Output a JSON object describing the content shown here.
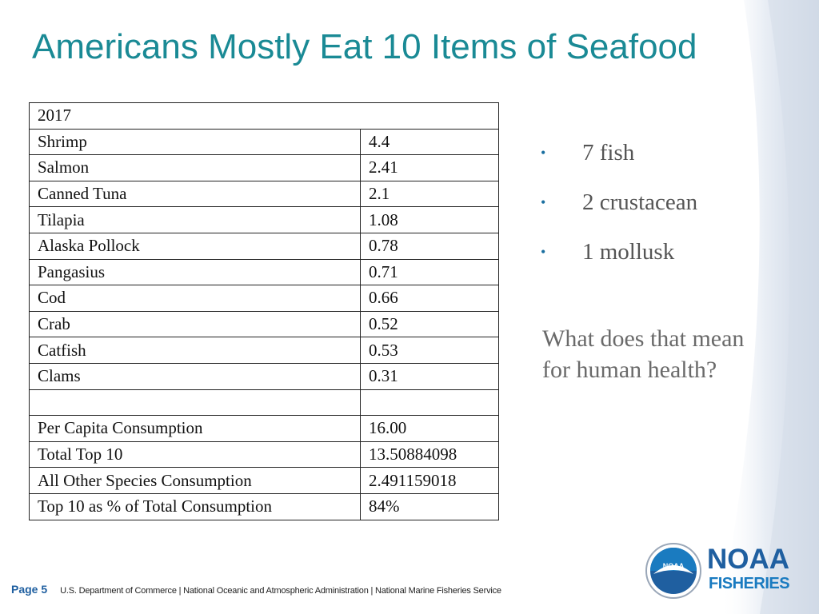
{
  "slide": {
    "title": "Americans Mostly Eat 10 Items of Seafood"
  },
  "table": {
    "header": "2017",
    "items": [
      {
        "name": "Shrimp",
        "value": "4.4"
      },
      {
        "name": "Salmon",
        "value": "2.41"
      },
      {
        "name": "Canned Tuna",
        "value": "2.1"
      },
      {
        "name": "Tilapia",
        "value": "1.08"
      },
      {
        "name": "Alaska Pollock",
        "value": "0.78"
      },
      {
        "name": "Pangasius",
        "value": "0.71"
      },
      {
        "name": "Cod",
        "value": "0.66"
      },
      {
        "name": "Crab",
        "value": "0.52"
      },
      {
        "name": "Catfish",
        "value": "0.53"
      },
      {
        "name": "Clams",
        "value": "0.31"
      }
    ],
    "summary": [
      {
        "name": "Per Capita Consumption",
        "value": "16.00"
      },
      {
        "name": "Total Top 10",
        "value": "13.50884098"
      },
      {
        "name": "All Other Species Consumption",
        "value": "2.491159018"
      },
      {
        "name": "Top 10 as % of Total Consumption",
        "value": "84%"
      }
    ]
  },
  "bullets": [
    {
      "marker": "•",
      "text": "7 fish"
    },
    {
      "marker": "•",
      "text": "2 crustacean"
    },
    {
      "marker": "•",
      "text": "1 mollusk"
    }
  ],
  "question": "What does that mean for  human health?",
  "footer": {
    "page": "Page 5",
    "credits": "U.S. Department of Commerce  |  National Oceanic and Atmospheric Administration  |  National Marine Fisheries Service"
  },
  "logo": {
    "emblem_text": "NOAA",
    "brand_line1": "NOAA",
    "brand_line2": "FISHERIES"
  },
  "colors": {
    "title": "#1a8a95",
    "brand_blue": "#1f5fa0",
    "text_gray": "#555555"
  }
}
